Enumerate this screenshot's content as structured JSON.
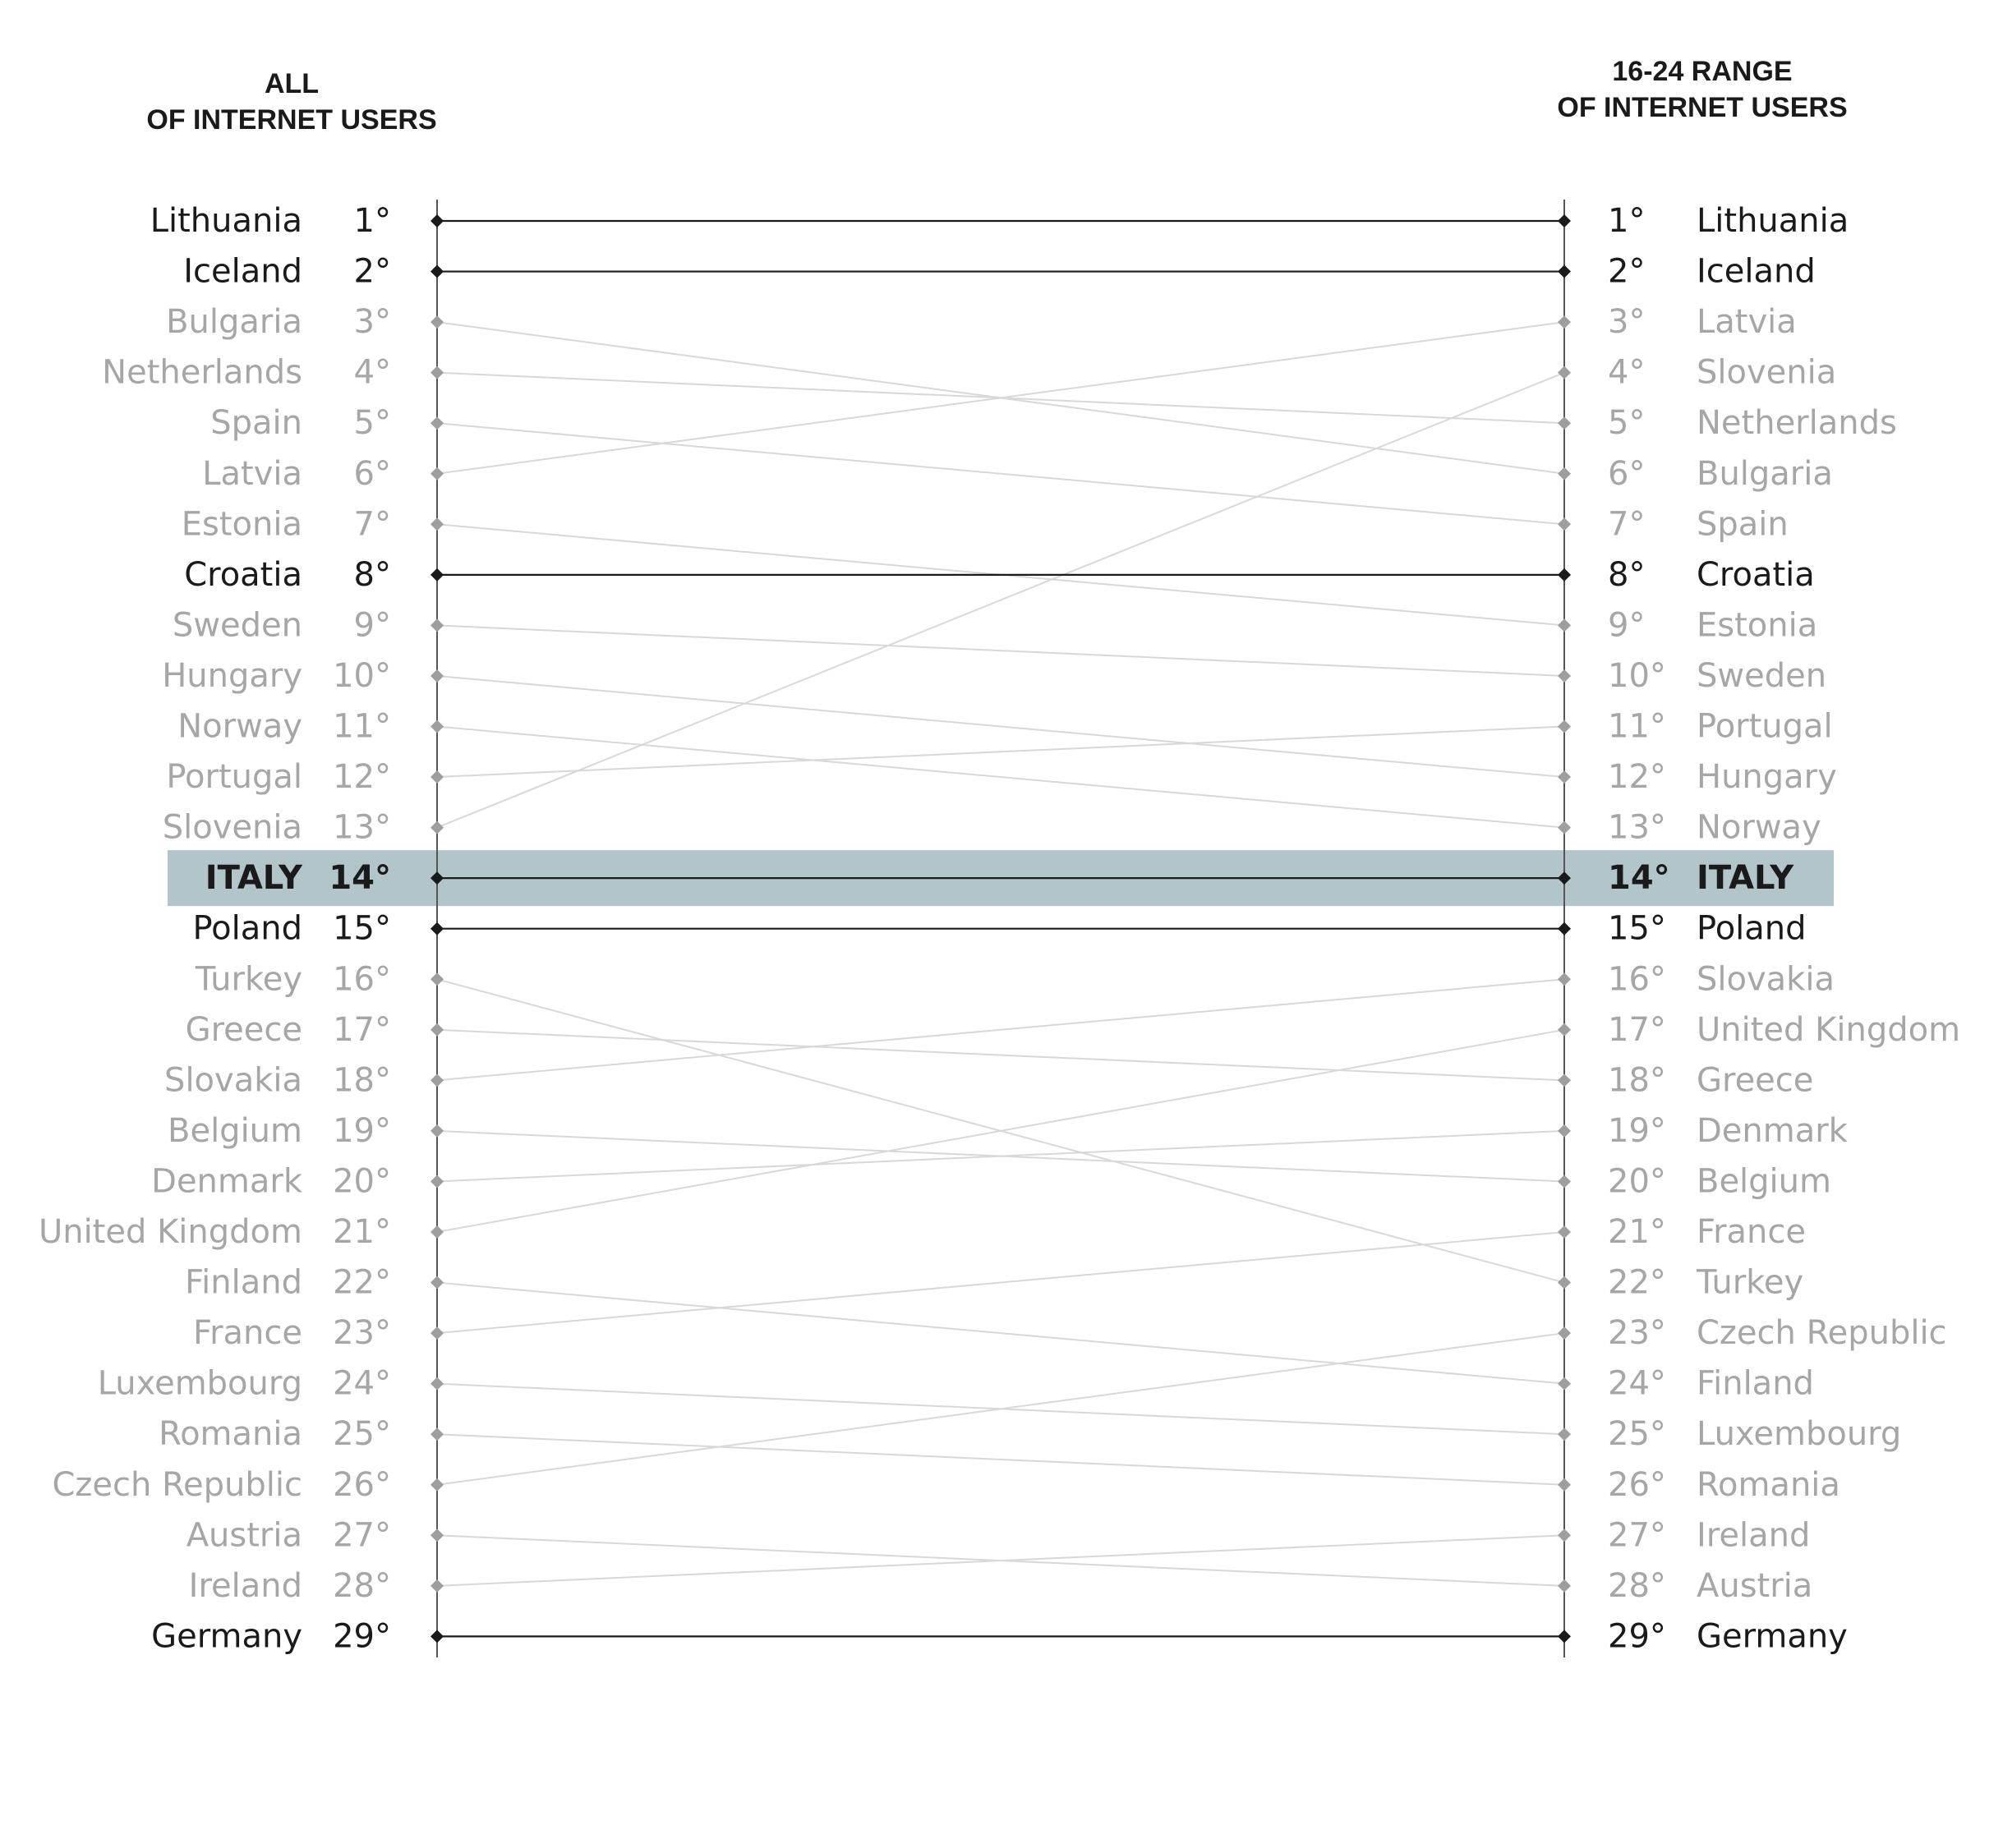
{
  "chart_data": {
    "type": "slope",
    "left_header": [
      "ALL",
      "OF INTERNET USERS"
    ],
    "right_header": [
      "16-24 RANGE",
      "OF INTERNET USERS"
    ],
    "rank_suffix": "°",
    "highlight_country": "Italy",
    "highlight_label": "ITALY",
    "colors": {
      "emphasis": "#1a1a1a",
      "muted_text": "#a6a6a6",
      "muted_line": "#d8d8d8",
      "muted_marker": "#9e9e9e",
      "axis": "#555555",
      "highlight_band": "#b2c6c9"
    },
    "series": [
      {
        "country": "Lithuania",
        "all_rank": 1,
        "young_rank": 1,
        "emphasis": true
      },
      {
        "country": "Iceland",
        "all_rank": 2,
        "young_rank": 2,
        "emphasis": true
      },
      {
        "country": "Bulgaria",
        "all_rank": 3,
        "young_rank": 6,
        "emphasis": false
      },
      {
        "country": "Netherlands",
        "all_rank": 4,
        "young_rank": 5,
        "emphasis": false
      },
      {
        "country": "Spain",
        "all_rank": 5,
        "young_rank": 7,
        "emphasis": false
      },
      {
        "country": "Latvia",
        "all_rank": 6,
        "young_rank": 3,
        "emphasis": false
      },
      {
        "country": "Estonia",
        "all_rank": 7,
        "young_rank": 9,
        "emphasis": false
      },
      {
        "country": "Croatia",
        "all_rank": 8,
        "young_rank": 8,
        "emphasis": true
      },
      {
        "country": "Sweden",
        "all_rank": 9,
        "young_rank": 10,
        "emphasis": false
      },
      {
        "country": "Hungary",
        "all_rank": 10,
        "young_rank": 12,
        "emphasis": false
      },
      {
        "country": "Norway",
        "all_rank": 11,
        "young_rank": 13,
        "emphasis": false
      },
      {
        "country": "Portugal",
        "all_rank": 12,
        "young_rank": 11,
        "emphasis": false
      },
      {
        "country": "Slovenia",
        "all_rank": 13,
        "young_rank": 4,
        "emphasis": false
      },
      {
        "country": "Italy",
        "all_rank": 14,
        "young_rank": 14,
        "emphasis": true
      },
      {
        "country": "Poland",
        "all_rank": 15,
        "young_rank": 15,
        "emphasis": true
      },
      {
        "country": "Turkey",
        "all_rank": 16,
        "young_rank": 22,
        "emphasis": false
      },
      {
        "country": "Greece",
        "all_rank": 17,
        "young_rank": 18,
        "emphasis": false
      },
      {
        "country": "Slovakia",
        "all_rank": 18,
        "young_rank": 16,
        "emphasis": false
      },
      {
        "country": "Belgium",
        "all_rank": 19,
        "young_rank": 20,
        "emphasis": false
      },
      {
        "country": "Denmark",
        "all_rank": 20,
        "young_rank": 19,
        "emphasis": false
      },
      {
        "country": "United Kingdom",
        "all_rank": 21,
        "young_rank": 17,
        "emphasis": false
      },
      {
        "country": "Finland",
        "all_rank": 22,
        "young_rank": 24,
        "emphasis": false
      },
      {
        "country": "France",
        "all_rank": 23,
        "young_rank": 21,
        "emphasis": false
      },
      {
        "country": "Luxembourg",
        "all_rank": 24,
        "young_rank": 25,
        "emphasis": false
      },
      {
        "country": "Romania",
        "all_rank": 25,
        "young_rank": 26,
        "emphasis": false
      },
      {
        "country": "Czech Republic",
        "all_rank": 26,
        "young_rank": 23,
        "emphasis": false
      },
      {
        "country": "Austria",
        "all_rank": 27,
        "young_rank": 28,
        "emphasis": false
      },
      {
        "country": "Ireland",
        "all_rank": 28,
        "young_rank": 27,
        "emphasis": false
      },
      {
        "country": "Germany",
        "all_rank": 29,
        "young_rank": 29,
        "emphasis": true
      }
    ]
  }
}
